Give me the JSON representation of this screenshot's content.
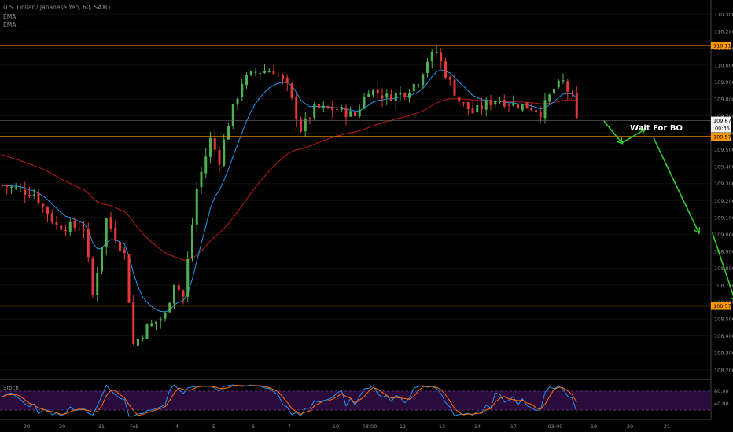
{
  "header": {
    "title": "U.S. Dollar / Japanese Yen, 60, SAXO",
    "ema1": "EMA",
    "ema2": "EMA"
  },
  "chart_data": {
    "type": "candlestick",
    "price_axis": {
      "labels": [
        "110.300",
        "110.200",
        "110.100",
        "110.000",
        "109.900",
        "109.800",
        "109.700",
        "109.600",
        "109.500",
        "109.400",
        "109.300",
        "109.200",
        "109.100",
        "109.000",
        "108.900",
        "108.800",
        "108.700",
        "108.600",
        "108.500",
        "108.400",
        "108.300",
        "108.200"
      ],
      "range": [
        108.12,
        110.38
      ]
    },
    "time_axis": {
      "labels": [
        "29",
        "30",
        "31",
        "Feb",
        "4",
        "5",
        "6",
        "7",
        "10",
        "03:00",
        "12",
        "13",
        "14",
        "17",
        "03:00",
        "19",
        "20",
        "21"
      ],
      "bars_visible": 145
    },
    "levels": [
      {
        "price": 110.115,
        "label": "110.115",
        "color": "#ff9800"
      },
      {
        "price": 109.577,
        "label": "109.577",
        "color": "#ff9800"
      },
      {
        "price": 108.577,
        "label": "108.577",
        "color": "#ff9800"
      }
    ],
    "last_price": {
      "value": "109.672",
      "countdown": "00:36"
    },
    "annotation": "Wait For BO",
    "arrows": [
      [
        [
          109.67,
          133
        ],
        [
          109.54,
          137
        ]
      ],
      [
        [
          109.54,
          137
        ],
        [
          109.62,
          142
        ]
      ],
      [
        [
          109.57,
          144
        ],
        [
          109.01,
          154
        ]
      ],
      [
        [
          109.01,
          157
        ],
        [
          108.61,
          162
        ]
      ]
    ],
    "colors": {
      "up": "#4caf50",
      "down": "#e53935",
      "ema_fast": "#2196f3",
      "ema_slow": "#b71c1c",
      "arrow": "#32cd32",
      "level": "#ff9800",
      "axis_text": "#8c8c8c"
    },
    "key_prices": [
      [
        0,
        109.29
      ],
      [
        7,
        109.24
      ],
      [
        12,
        109.05
      ],
      [
        18,
        109.04
      ],
      [
        20,
        108.64
      ],
      [
        23,
        109.09
      ],
      [
        27,
        108.88
      ],
      [
        29,
        108.35
      ],
      [
        32,
        108.45
      ],
      [
        36,
        108.52
      ],
      [
        38,
        108.72
      ],
      [
        40,
        108.63
      ],
      [
        43,
        109.27
      ],
      [
        46,
        109.56
      ],
      [
        48,
        109.44
      ],
      [
        50,
        109.66
      ],
      [
        53,
        109.9
      ],
      [
        56,
        109.96
      ],
      [
        60,
        109.97
      ],
      [
        63,
        109.87
      ],
      [
        66,
        109.62
      ],
      [
        69,
        109.74
      ],
      [
        74,
        109.74
      ],
      [
        78,
        109.7
      ],
      [
        81,
        109.86
      ],
      [
        85,
        109.81
      ],
      [
        89,
        109.84
      ],
      [
        92,
        109.91
      ],
      [
        94,
        110.03
      ],
      [
        96,
        110.08
      ],
      [
        98,
        109.95
      ],
      [
        101,
        109.79
      ],
      [
        104,
        109.72
      ],
      [
        106,
        109.75
      ],
      [
        109,
        109.8
      ],
      [
        113,
        109.77
      ],
      [
        117,
        109.75
      ],
      [
        119,
        109.72
      ],
      [
        122,
        109.86
      ],
      [
        124,
        109.9
      ],
      [
        126,
        109.8
      ],
      [
        127,
        109.67
      ]
    ],
    "stoch": {
      "label": "Stoch",
      "levels": [
        "80.00",
        "40.00"
      ],
      "upper": 80,
      "lower": 20
    }
  }
}
